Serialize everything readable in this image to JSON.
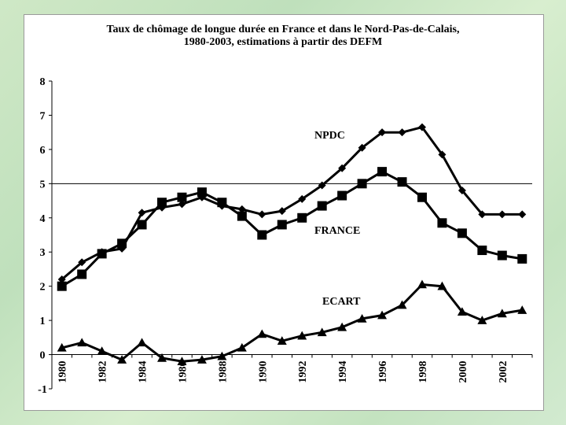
{
  "chart_data": {
    "type": "line",
    "title": "Taux de chômage de longue durée en France et dans le Nord-Pas-de-Calais,",
    "subtitle": "1980-2003, estimations à partir des DEFM",
    "x": [
      1980,
      1981,
      1982,
      1983,
      1984,
      1985,
      1986,
      1987,
      1988,
      1989,
      1990,
      1991,
      1992,
      1993,
      1994,
      1995,
      1996,
      1997,
      1998,
      1999,
      2000,
      2001,
      2002,
      2003
    ],
    "x_tick_labels": [
      "1980",
      "1982",
      "1984",
      "1986",
      "1988",
      "1990",
      "1992",
      "1994",
      "1996",
      "1998",
      "2000",
      "2002"
    ],
    "y_tick_labels": [
      "-1",
      "0",
      "1",
      "2",
      "3",
      "4",
      "5",
      "6",
      "7",
      "8"
    ],
    "ylim": [
      -1,
      8
    ],
    "series": [
      {
        "name": "NPDC",
        "marker": "diamond",
        "values": [
          2.2,
          2.7,
          3.0,
          3.1,
          4.15,
          4.3,
          4.4,
          4.6,
          4.35,
          4.25,
          4.1,
          4.2,
          4.55,
          4.95,
          5.45,
          6.05,
          6.5,
          6.5,
          6.65,
          5.85,
          4.8,
          4.1,
          4.1,
          4.1
        ]
      },
      {
        "name": "FRANCE",
        "marker": "square",
        "values": [
          2.0,
          2.35,
          2.95,
          3.25,
          3.8,
          4.45,
          4.6,
          4.75,
          4.45,
          4.05,
          3.5,
          3.8,
          4.0,
          4.35,
          4.65,
          5.0,
          5.35,
          5.05,
          4.6,
          3.85,
          3.55,
          3.05,
          2.9,
          2.8
        ]
      },
      {
        "name": "ECART",
        "marker": "triangle",
        "values": [
          0.2,
          0.35,
          0.1,
          -0.15,
          0.35,
          -0.1,
          -0.2,
          -0.15,
          -0.05,
          0.2,
          0.6,
          0.4,
          0.55,
          0.65,
          0.8,
          1.05,
          1.15,
          1.45,
          2.05,
          2.0,
          1.25,
          1.0,
          1.2,
          1.3
        ]
      }
    ],
    "series_labels": {
      "npdc": "NPDC",
      "france": "FRANCE",
      "ecart": "ECART"
    },
    "grid": false,
    "zero_line": true,
    "reference_line": 5
  }
}
